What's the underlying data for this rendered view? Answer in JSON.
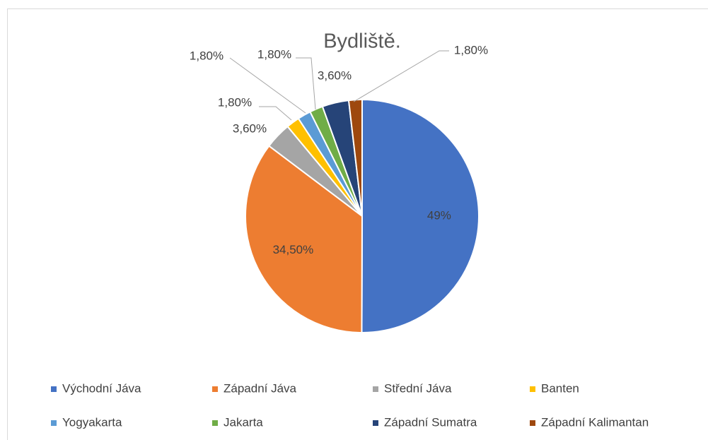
{
  "chart_data": {
    "type": "pie",
    "title": "Bydliště.",
    "categories": [
      "Východní Jáva",
      "Západní Jáva",
      "Střední Jáva",
      "Banten",
      "Yogyakarta",
      "Jakarta",
      "Západní Sumatra",
      "Západní Kalimantan"
    ],
    "values": [
      49,
      34.5,
      3.6,
      1.8,
      1.8,
      1.8,
      3.6,
      1.8
    ],
    "value_labels": [
      "49%",
      "34,50%",
      "3,60%",
      "1,80%",
      "1,80%",
      "1,80%",
      "3,60%",
      "1,80%"
    ],
    "colors": [
      "#4472c4",
      "#ed7d31",
      "#a5a5a5",
      "#ffc000",
      "#5b9bd5",
      "#70ad47",
      "#264478",
      "#9e480e"
    ],
    "legend": "bottom"
  }
}
